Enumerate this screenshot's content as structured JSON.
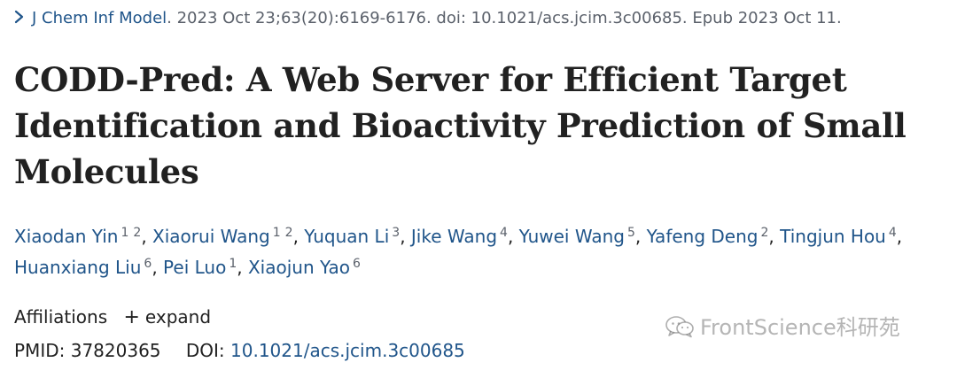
{
  "citation": {
    "journal": "J Chem Inf Model",
    "details": ". 2023 Oct 23;63(20):6169-6176. doi: 10.1021/acs.jcim.3c00685. Epub 2023 Oct 11."
  },
  "title": "CODD-Pred: A Web Server for Efficient Target Identification and Bioactivity Prediction of Small Molecules",
  "authors": [
    {
      "name": "Xiaodan Yin",
      "affiliations": [
        "1",
        "2"
      ]
    },
    {
      "name": "Xiaorui Wang",
      "affiliations": [
        "1",
        "2"
      ]
    },
    {
      "name": "Yuquan Li",
      "affiliations": [
        "3"
      ]
    },
    {
      "name": "Jike Wang",
      "affiliations": [
        "4"
      ]
    },
    {
      "name": "Yuwei Wang",
      "affiliations": [
        "5"
      ]
    },
    {
      "name": "Yafeng Deng",
      "affiliations": [
        "2"
      ]
    },
    {
      "name": "Tingjun Hou",
      "affiliations": [
        "4"
      ]
    },
    {
      "name": "Huanxiang Liu",
      "affiliations": [
        "6"
      ]
    },
    {
      "name": "Pei Luo",
      "affiliations": [
        "1"
      ]
    },
    {
      "name": "Xiaojun Yao",
      "affiliations": [
        "6"
      ]
    }
  ],
  "affiliations": {
    "label": "Affiliations",
    "plus": "+",
    "expand_label": "expand"
  },
  "identifiers": {
    "pmid_label": "PMID:",
    "pmid": "37820365",
    "doi_label": "DOI:",
    "doi": "10.1021/acs.jcim.3c00685"
  },
  "watermark": {
    "text": "FrontScience科研苑",
    "icon": "wechat-icon"
  },
  "colors": {
    "link": "#20558a",
    "text": "#212121",
    "muted": "#5b616b"
  }
}
